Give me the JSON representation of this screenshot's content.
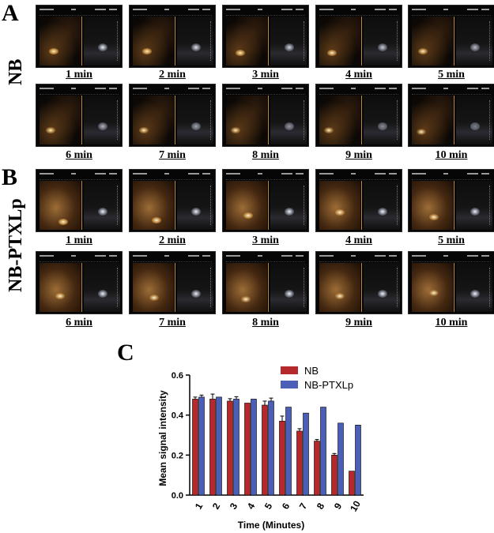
{
  "panels": {
    "a": {
      "letter": "A",
      "group_label": "NB",
      "captions": [
        "1 min",
        "2 min",
        "3 min",
        "4 min",
        "5 min",
        "6 min",
        "7 min",
        "8 min",
        "9 min",
        "10 min"
      ]
    },
    "b": {
      "letter": "B",
      "group_label": "NB-PTXLp",
      "captions": [
        "1 min",
        "2 min",
        "3 min",
        "4 min",
        "5 min",
        "6 min",
        "7 min",
        "8 min",
        "9 min",
        "10 min"
      ]
    },
    "c": {
      "letter": "C"
    }
  },
  "chart_data": {
    "type": "bar",
    "categories": [
      "1",
      "2",
      "3",
      "4",
      "5",
      "6",
      "7",
      "8",
      "9",
      "10"
    ],
    "series": [
      {
        "name": "NB",
        "color": "#b5292c",
        "values": [
          0.48,
          0.48,
          0.47,
          0.46,
          0.45,
          0.37,
          0.32,
          0.27,
          0.2,
          0.12
        ],
        "errors": [
          0.01,
          0.025,
          0.012,
          0.0,
          0.02,
          0.025,
          0.012,
          0.008,
          0.008,
          0.0
        ]
      },
      {
        "name": "NB-PTXLp",
        "color": "#4a5fb5",
        "values": [
          0.49,
          0.49,
          0.48,
          0.48,
          0.47,
          0.44,
          0.41,
          0.44,
          0.36,
          0.35
        ],
        "errors": [
          0.01,
          0.0,
          0.012,
          0.0,
          0.015,
          0.0,
          0.0,
          0.0,
          0.0,
          0.0
        ]
      }
    ],
    "xlabel": "Time (Minutes)",
    "ylabel": "Mean signal intensity",
    "ylim": [
      0,
      0.6
    ],
    "yticks": [
      "0.0",
      "0.2",
      "0.4",
      "0.6"
    ],
    "legend_position": "top-right",
    "grid": false
  }
}
